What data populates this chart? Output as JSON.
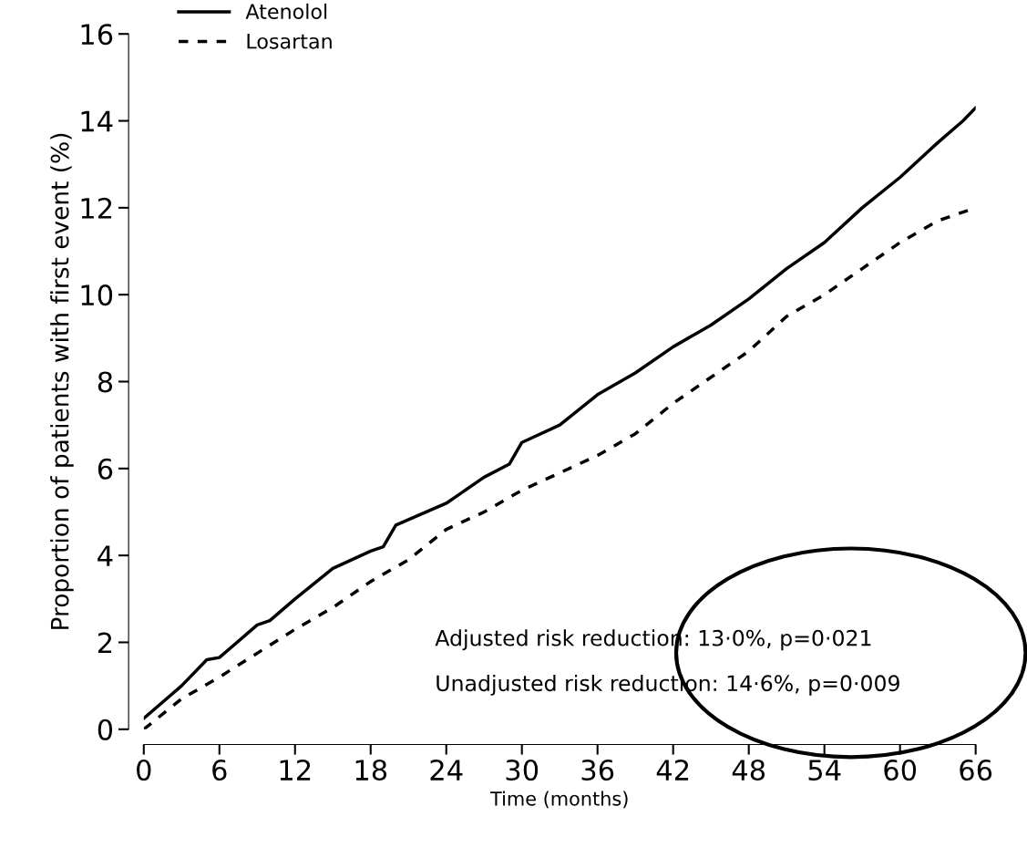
{
  "chart_data": {
    "type": "line",
    "xlabel": "Time (months)",
    "ylabel": "Proportion of patients with first event (%)",
    "xlim": [
      0,
      66
    ],
    "xticks": [
      0,
      6,
      12,
      18,
      24,
      30,
      36,
      42,
      48,
      54,
      60,
      66
    ],
    "ylim": [
      0,
      16
    ],
    "yticks": [
      0,
      2,
      4,
      6,
      8,
      10,
      12,
      14,
      16
    ],
    "grid": false,
    "legend": "top left",
    "marker": "none",
    "series": [
      {
        "name": "Atenolol",
        "color": "#000000",
        "line_style": "solid",
        "x": [
          0,
          3,
          5,
          6,
          9,
          10,
          12,
          15,
          18,
          19,
          20,
          24,
          27,
          29,
          30,
          33,
          36,
          39,
          42,
          45,
          48,
          51,
          54,
          57,
          60,
          63,
          65,
          66
        ],
        "values": [
          0.25,
          1.0,
          1.6,
          1.65,
          2.4,
          2.5,
          3.0,
          3.7,
          4.1,
          4.2,
          4.7,
          5.2,
          5.8,
          6.1,
          6.6,
          7.0,
          7.7,
          8.2,
          8.8,
          9.3,
          9.9,
          10.6,
          11.2,
          12.0,
          12.7,
          13.5,
          14.0,
          14.3
        ]
      },
      {
        "name": "Losartan",
        "color": "#000000",
        "line_style": "dashed",
        "x": [
          0,
          3,
          6,
          9,
          12,
          15,
          18,
          21,
          24,
          27,
          30,
          33,
          36,
          39,
          42,
          45,
          48,
          51,
          54,
          57,
          60,
          63,
          66
        ],
        "values": [
          0.0,
          0.7,
          1.2,
          1.75,
          2.3,
          2.8,
          3.4,
          3.9,
          4.6,
          5.0,
          5.5,
          5.9,
          6.3,
          6.8,
          7.5,
          8.1,
          8.7,
          9.5,
          10.0,
          10.6,
          11.2,
          11.7,
          12.0
        ]
      }
    ],
    "annotations": [
      "Adjusted risk reduction: 13·0%, p=0·021",
      "Unadjusted risk reduction: 14·6%, p=0·009"
    ]
  }
}
